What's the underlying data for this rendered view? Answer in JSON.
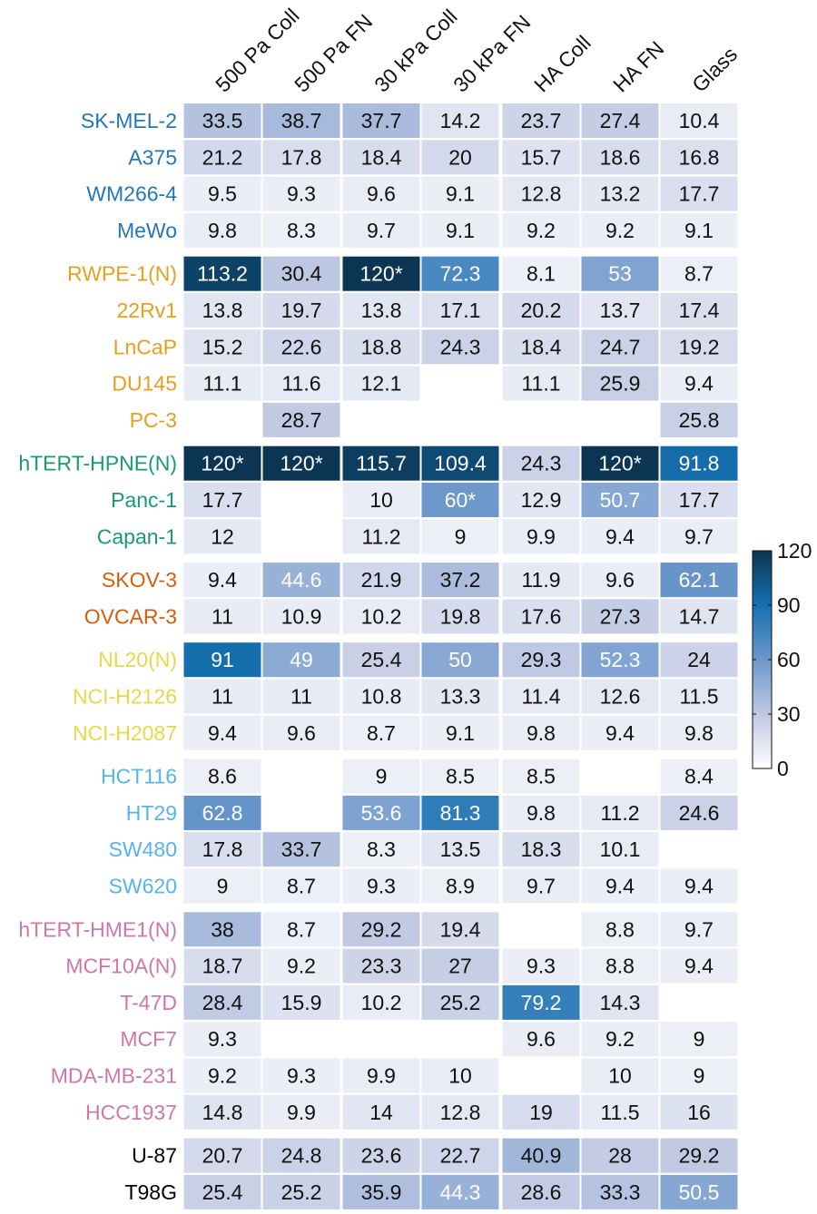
{
  "chart_data": {
    "type": "heatmap",
    "columns": [
      "500 Pa Coll",
      "500 Pa FN",
      "30 kPa Coll",
      "30 kPa FN",
      "HA Coll",
      "HA FN",
      "Glass"
    ],
    "groups": [
      {
        "color": "#2577b5",
        "rows": [
          {
            "label": "SK-MEL-2",
            "values": [
              33.5,
              38.7,
              37.7,
              14.2,
              23.7,
              27.4,
              10.4
            ]
          },
          {
            "label": "A375",
            "values": [
              21.2,
              17.8,
              18.4,
              20,
              15.7,
              18.6,
              16.8
            ]
          },
          {
            "label": "WM266-4",
            "values": [
              9.5,
              9.3,
              9.6,
              9.1,
              12.8,
              13.2,
              17.7
            ]
          },
          {
            "label": "MeWo",
            "values": [
              9.8,
              8.3,
              9.7,
              9.1,
              9.2,
              9.2,
              9.1
            ]
          }
        ]
      },
      {
        "color": "#e69f1e",
        "rows": [
          {
            "label": "RWPE-1(N)",
            "values": [
              113.2,
              30.4,
              120,
              72.3,
              8.1,
              53,
              8.7
            ],
            "display": [
              "113.2",
              "30.4",
              "120*",
              "72.3",
              "8.1",
              "53",
              "8.7"
            ]
          },
          {
            "label": "22Rv1",
            "values": [
              13.8,
              19.7,
              13.8,
              17.1,
              20.2,
              13.7,
              17.4
            ]
          },
          {
            "label": "LnCaP",
            "values": [
              15.2,
              22.6,
              18.8,
              24.3,
              18.4,
              24.7,
              19.2
            ]
          },
          {
            "label": "DU145",
            "values": [
              11.1,
              11.6,
              12.1,
              null,
              11.1,
              25.9,
              9.4
            ]
          },
          {
            "label": "PC-3",
            "values": [
              null,
              28.7,
              null,
              null,
              null,
              null,
              25.8
            ]
          }
        ]
      },
      {
        "color": "#1a9a74",
        "rows": [
          {
            "label": "hTERT-HPNE(N)",
            "values": [
              120,
              120,
              115.7,
              109.4,
              24.3,
              120,
              91.8
            ],
            "display": [
              "120*",
              "120*",
              "115.7",
              "109.4",
              "24.3",
              "120*",
              "91.8"
            ]
          },
          {
            "label": "Panc-1",
            "values": [
              17.7,
              null,
              10,
              60,
              12.9,
              50.7,
              17.7
            ],
            "display": [
              "17.7",
              "",
              "10",
              "60*",
              "12.9",
              "50.7",
              "17.7"
            ]
          },
          {
            "label": "Capan-1",
            "values": [
              12,
              null,
              11.2,
              9,
              9.9,
              9.4,
              9.7
            ]
          }
        ]
      },
      {
        "color": "#d55e0b",
        "rows": [
          {
            "label": "SKOV-3",
            "values": [
              9.4,
              44.6,
              21.9,
              37.2,
              11.9,
              9.6,
              62.1
            ]
          },
          {
            "label": "OVCAR-3",
            "values": [
              11,
              10.9,
              10.2,
              19.8,
              17.6,
              27.3,
              14.7
            ]
          }
        ]
      },
      {
        "color": "#e7d84a",
        "rows": [
          {
            "label": "NL20(N)",
            "values": [
              91,
              49,
              25.4,
              50,
              29.3,
              52.3,
              24
            ]
          },
          {
            "label": "NCI-H2126",
            "values": [
              11,
              11,
              10.8,
              13.3,
              11.4,
              12.6,
              11.5
            ]
          },
          {
            "label": "NCI-H2087",
            "values": [
              9.4,
              9.6,
              8.7,
              9.1,
              9.8,
              9.4,
              9.8
            ]
          }
        ]
      },
      {
        "color": "#56b4e9",
        "rows": [
          {
            "label": "HCT116",
            "values": [
              8.6,
              null,
              9,
              8.5,
              8.5,
              null,
              8.4
            ]
          },
          {
            "label": "HT29",
            "values": [
              62.8,
              null,
              53.6,
              81.3,
              9.8,
              11.2,
              24.6
            ]
          },
          {
            "label": "SW480",
            "values": [
              17.8,
              33.7,
              8.3,
              13.5,
              18.3,
              10.1,
              null
            ]
          },
          {
            "label": "SW620",
            "values": [
              9,
              8.7,
              9.3,
              8.9,
              9.7,
              9.4,
              9.4
            ]
          }
        ]
      },
      {
        "color": "#cc79a7",
        "rows": [
          {
            "label": "hTERT-HME1(N)",
            "values": [
              38,
              8.7,
              29.2,
              19.4,
              null,
              8.8,
              9.7
            ]
          },
          {
            "label": "MCF10A(N)",
            "values": [
              18.7,
              9.2,
              23.3,
              27,
              9.3,
              8.8,
              9.4
            ]
          },
          {
            "label": "T-47D",
            "values": [
              28.4,
              15.9,
              10.2,
              25.2,
              79.2,
              14.3,
              null
            ]
          },
          {
            "label": "MCF7",
            "values": [
              9.3,
              null,
              null,
              null,
              9.6,
              9.2,
              9
            ]
          },
          {
            "label": "MDA-MB-231",
            "values": [
              9.2,
              9.3,
              9.9,
              10,
              null,
              10,
              9
            ]
          },
          {
            "label": "HCC1937",
            "values": [
              14.8,
              9.9,
              14,
              12.8,
              19,
              11.5,
              16
            ]
          }
        ]
      },
      {
        "color": "#000000",
        "rows": [
          {
            "label": "U-87",
            "values": [
              20.7,
              24.8,
              23.6,
              22.7,
              40.9,
              28,
              29.2
            ]
          },
          {
            "label": "T98G",
            "values": [
              25.4,
              25.2,
              35.9,
              44.3,
              28.6,
              33.3,
              50.5
            ]
          }
        ]
      }
    ],
    "colorbar": {
      "range": [
        0,
        120
      ],
      "ticks": [
        "120",
        "90",
        "60",
        "30",
        "0"
      ],
      "colors": [
        "#ffffff",
        "#bfc8e2",
        "#6d98cc",
        "#1571b0",
        "#0c3553"
      ]
    },
    "legend": "right"
  }
}
